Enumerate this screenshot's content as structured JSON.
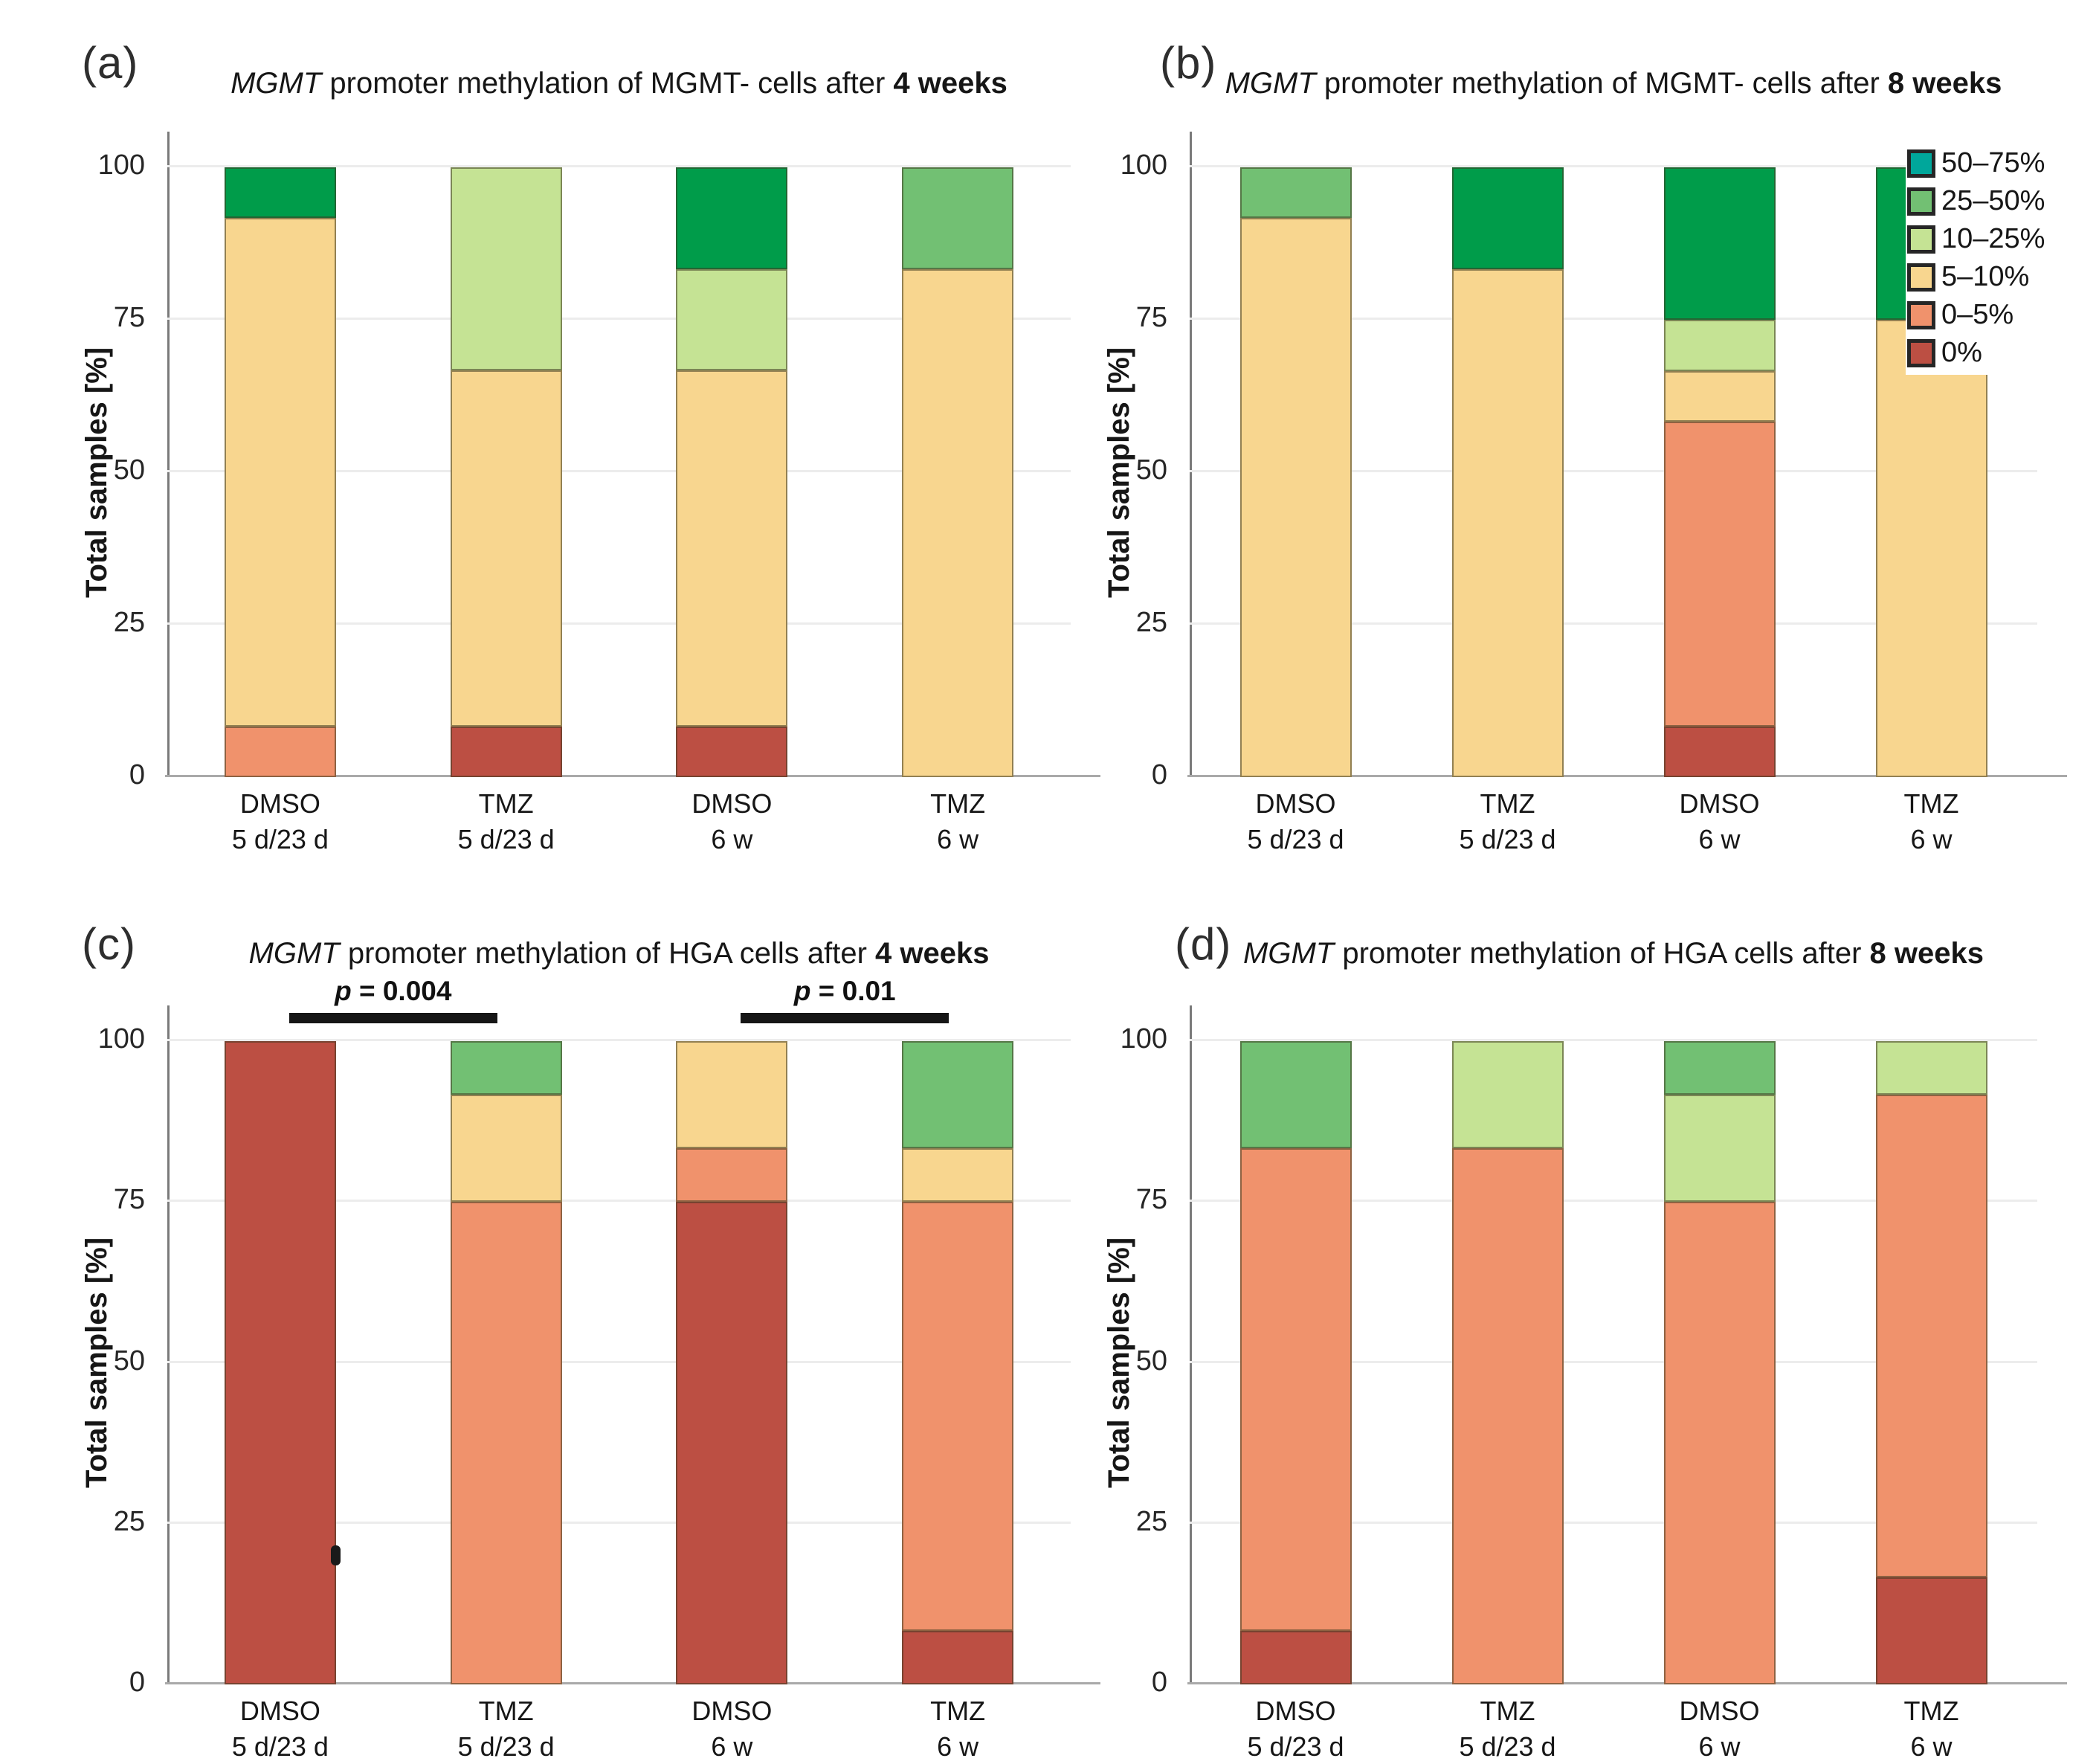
{
  "figure": {
    "background": "#ffffff",
    "description": "Four stacked bar charts (a-d) of MGMT promoter methylation categories"
  },
  "axis": {
    "ylabel": "Total samples [%]",
    "ticks": [
      100,
      75,
      50,
      25,
      0
    ],
    "ylim": [
      0,
      100
    ]
  },
  "categories": [
    {
      "line1": "DMSO",
      "line2": "5 d/23 d"
    },
    {
      "line1": "TMZ",
      "line2": "5 d/23 d"
    },
    {
      "line1": "DMSO",
      "line2": "6 w"
    },
    {
      "line1": "TMZ",
      "line2": "6 w"
    }
  ],
  "palette": {
    "0%": "#BC4F43",
    "0–5%": "#F0926C",
    "5–10%": "#F8D68F",
    "10–25%": "#C5E394",
    "25–50%": "#72C073",
    "50–75%": "#00A79B",
    "green-dark": "#009C4A"
  },
  "legend": {
    "entries": [
      {
        "label": "50–75%",
        "color": "#00A79B"
      },
      {
        "label": "25–50%",
        "color": "#72C073"
      },
      {
        "label": "10–25%",
        "color": "#C5E394"
      },
      {
        "label": "5–10%",
        "color": "#F8D68F"
      },
      {
        "label": "0–5%",
        "color": "#F0926C"
      },
      {
        "label": "0%",
        "color": "#BC4F43"
      }
    ]
  },
  "chart_data": {
    "type": "bar",
    "subtype": "stacked-100%",
    "ylim": [
      0,
      100
    ],
    "grid": true,
    "legend_position": "right-of-panel-b",
    "panels": [
      {
        "letter": "(a)",
        "title_italic": "MGMT",
        "title_mid": " promoter methylation of MGMT- cells after ",
        "title_bold": "4 weeks",
        "bars": [
          {
            "category": "DMSO 5 d/23 d",
            "segments": [
              {
                "range": "0–5%",
                "value": 8.3
              },
              {
                "range": "5–10%",
                "value": 83.4
              },
              {
                "range": "green-dark",
                "value": 8.3
              }
            ]
          },
          {
            "category": "TMZ 5 d/23 d",
            "segments": [
              {
                "range": "0%",
                "value": 8.3
              },
              {
                "range": "5–10%",
                "value": 58.4
              },
              {
                "range": "10–25%",
                "value": 33.3
              }
            ]
          },
          {
            "category": "DMSO 6 w",
            "segments": [
              {
                "range": "0%",
                "value": 8.3
              },
              {
                "range": "5–10%",
                "value": 58.4
              },
              {
                "range": "10–25%",
                "value": 16.6
              },
              {
                "range": "green-dark",
                "value": 16.7
              }
            ]
          },
          {
            "category": "TMZ 6 w",
            "segments": [
              {
                "range": "5–10%",
                "value": 83.3
              },
              {
                "range": "25–50%",
                "value": 16.7
              }
            ]
          }
        ],
        "annotations": []
      },
      {
        "letter": "(b)",
        "title_italic": "MGMT",
        "title_mid": " promoter methylation of MGMT- cells after ",
        "title_bold": "8 weeks",
        "bars": [
          {
            "category": "DMSO 5 d/23 d",
            "segments": [
              {
                "range": "5–10%",
                "value": 91.7
              },
              {
                "range": "25–50%",
                "value": 8.3
              }
            ]
          },
          {
            "category": "TMZ 5 d/23 d",
            "segments": [
              {
                "range": "5–10%",
                "value": 83.3
              },
              {
                "range": "green-dark",
                "value": 16.7
              }
            ]
          },
          {
            "category": "DMSO 6 w",
            "segments": [
              {
                "range": "0%",
                "value": 8.3
              },
              {
                "range": "0–5%",
                "value": 50.0
              },
              {
                "range": "5–10%",
                "value": 8.3
              },
              {
                "range": "10–25%",
                "value": 8.4
              },
              {
                "range": "green-dark",
                "value": 25.0
              }
            ]
          },
          {
            "category": "TMZ 6 w",
            "segments": [
              {
                "range": "5–10%",
                "value": 75.0
              },
              {
                "range": "green-dark",
                "value": 25.0
              }
            ]
          }
        ],
        "annotations": []
      },
      {
        "letter": "(c)",
        "title_italic": "MGMT",
        "title_mid": " promoter methylation of HGA cells after ",
        "title_bold": "4 weeks",
        "bars": [
          {
            "category": "DMSO 5 d/23 d",
            "segments": [
              {
                "range": "0%",
                "value": 100
              }
            ]
          },
          {
            "category": "TMZ 5 d/23 d",
            "segments": [
              {
                "range": "0–5%",
                "value": 75.0
              },
              {
                "range": "5–10%",
                "value": 16.7
              },
              {
                "range": "25–50%",
                "value": 8.3
              }
            ]
          },
          {
            "category": "DMSO 6 w",
            "segments": [
              {
                "range": "0%",
                "value": 75.0
              },
              {
                "range": "0–5%",
                "value": 8.3
              },
              {
                "range": "5–10%",
                "value": 16.7
              }
            ]
          },
          {
            "category": "TMZ 6 w",
            "segments": [
              {
                "range": "0%",
                "value": 8.3
              },
              {
                "range": "0–5%",
                "value": 66.7
              },
              {
                "range": "5–10%",
                "value": 8.3
              },
              {
                "range": "25–50%",
                "value": 16.7
              }
            ]
          }
        ],
        "annotations": [
          {
            "type": "sig-bar",
            "label": "p = 0.004",
            "from_bar": 0,
            "to_bar": 1
          },
          {
            "type": "sig-bar",
            "label": "p = 0.01",
            "from_bar": 2,
            "to_bar": 3
          },
          {
            "type": "edge-tick",
            "bar": 0,
            "y": 20
          }
        ]
      },
      {
        "letter": "(d)",
        "title_italic": "MGMT",
        "title_mid": " promoter methylation of HGA cells after ",
        "title_bold": "8 weeks",
        "bars": [
          {
            "category": "DMSO 5 d/23 d",
            "segments": [
              {
                "range": "0%",
                "value": 8.3
              },
              {
                "range": "0–5%",
                "value": 75.0
              },
              {
                "range": "25–50%",
                "value": 16.7
              }
            ]
          },
          {
            "category": "TMZ 5 d/23 d",
            "segments": [
              {
                "range": "0–5%",
                "value": 83.3
              },
              {
                "range": "10–25%",
                "value": 16.7
              }
            ]
          },
          {
            "category": "DMSO 6 w",
            "segments": [
              {
                "range": "0–5%",
                "value": 75.0
              },
              {
                "range": "10–25%",
                "value": 16.7
              },
              {
                "range": "25–50%",
                "value": 8.3
              }
            ]
          },
          {
            "category": "TMZ 6 w",
            "segments": [
              {
                "range": "0%",
                "value": 16.7
              },
              {
                "range": "0–5%",
                "value": 75.0
              },
              {
                "range": "10–25%",
                "value": 8.3
              }
            ]
          }
        ],
        "annotations": []
      }
    ]
  }
}
